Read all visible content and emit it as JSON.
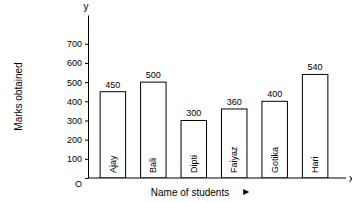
{
  "chart_data": {
    "type": "bar",
    "x_label": "Name of students",
    "y_label": "Marks obtained",
    "annotations": [
      "y",
      "x"
    ],
    "categories": [
      "Ajay",
      "Bali",
      "Dipti",
      "Faiyaz",
      "Gotika",
      "Hari"
    ],
    "values": [
      450,
      500,
      300,
      360,
      400,
      540
    ],
    "color": "#ffffff",
    "ylim": [
      0,
      850
    ],
    "yticks": [
      {
        "value": 0,
        "label": "O"
      },
      100,
      200,
      300,
      400,
      500,
      600,
      700
    ],
    "grid": false,
    "data_labels": true
  }
}
